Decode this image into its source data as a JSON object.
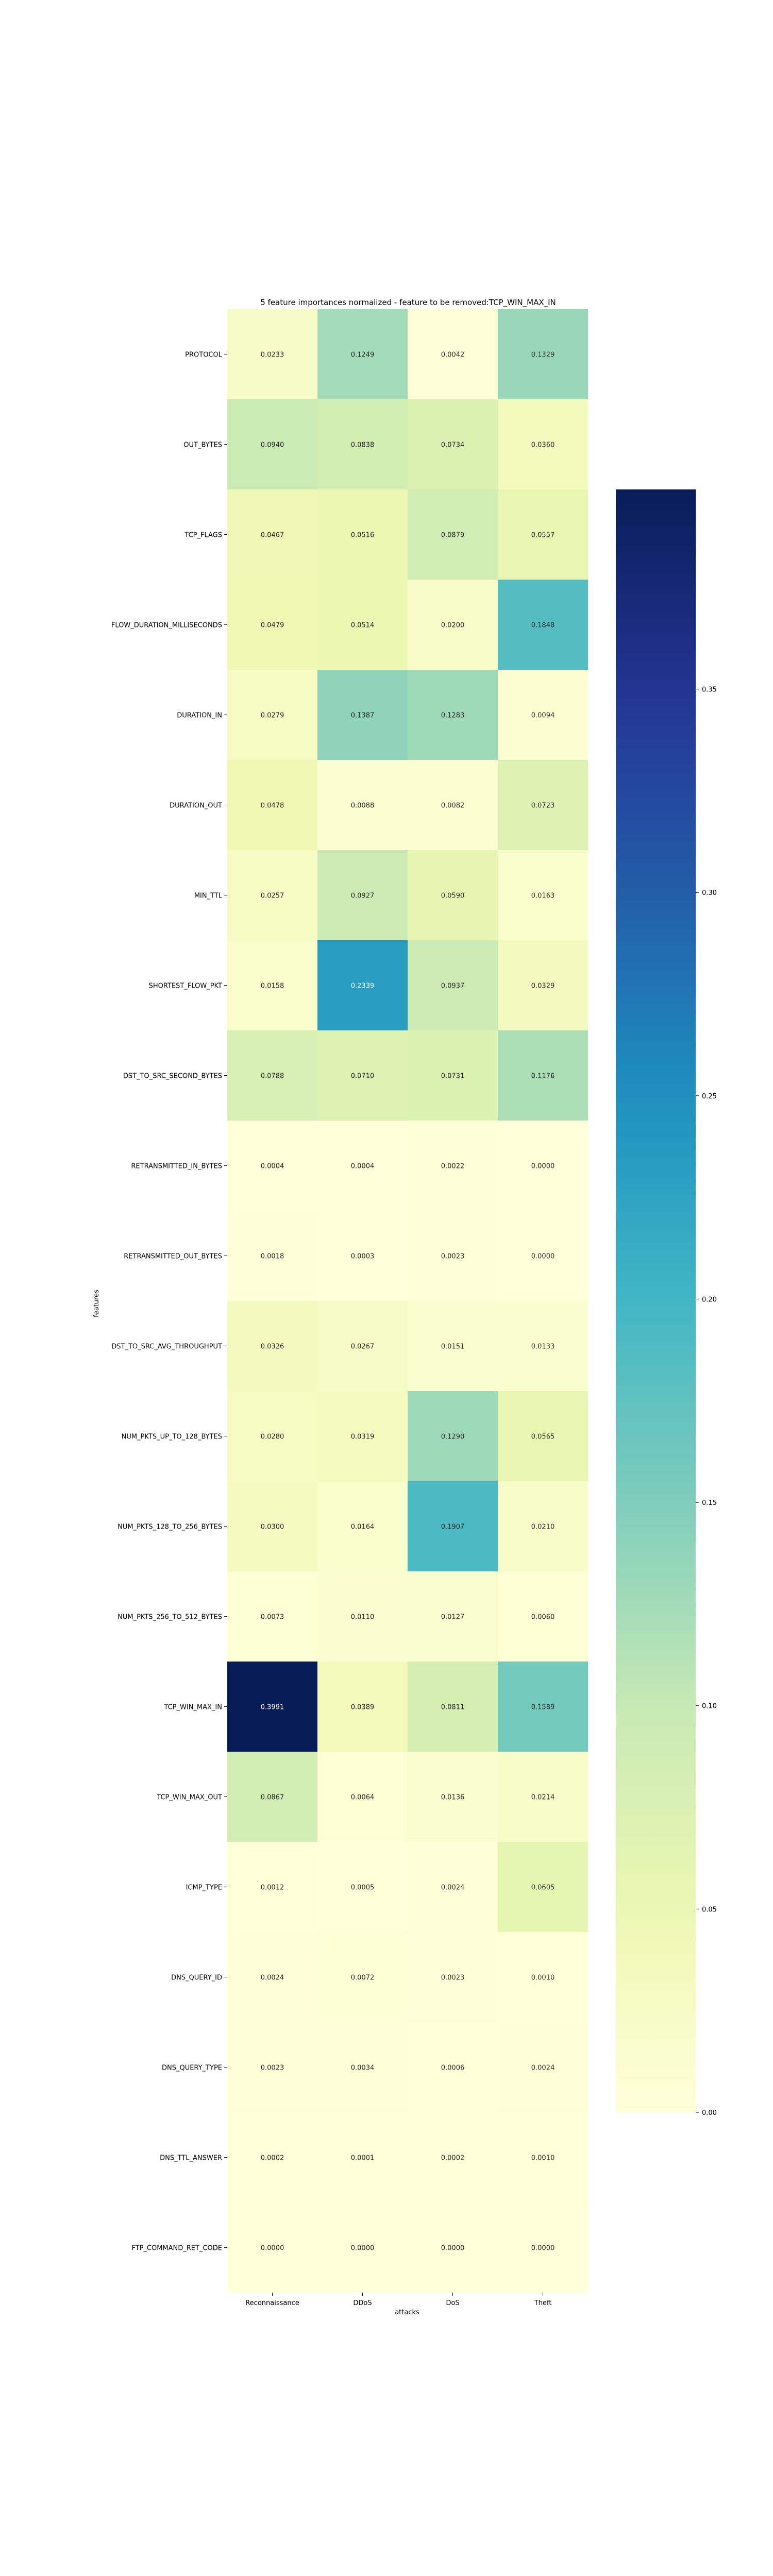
{
  "chart_data": {
    "type": "heatmap",
    "title": "5 feature importances normalized - feature to be removed:TCP_WIN_MAX_IN",
    "xlabel": "attacks",
    "ylabel": "features",
    "columns": [
      "Reconnaissance",
      "DDoS",
      "DoS",
      "Theft"
    ],
    "rows": [
      "PROTOCOL",
      "OUT_BYTES",
      "TCP_FLAGS",
      "FLOW_DURATION_MILLISECONDS",
      "DURATION_IN",
      "DURATION_OUT",
      "MIN_TTL",
      "SHORTEST_FLOW_PKT",
      "DST_TO_SRC_SECOND_BYTES",
      "RETRANSMITTED_IN_BYTES",
      "RETRANSMITTED_OUT_BYTES",
      "DST_TO_SRC_AVG_THROUGHPUT",
      "NUM_PKTS_UP_TO_128_BYTES",
      "NUM_PKTS_128_TO_256_BYTES",
      "NUM_PKTS_256_TO_512_BYTES",
      "TCP_WIN_MAX_IN",
      "TCP_WIN_MAX_OUT",
      "ICMP_TYPE",
      "DNS_QUERY_ID",
      "DNS_QUERY_TYPE",
      "DNS_TTL_ANSWER",
      "FTP_COMMAND_RET_CODE"
    ],
    "values": [
      [
        0.0233,
        0.1249,
        0.0042,
        0.1329
      ],
      [
        0.094,
        0.0838,
        0.0734,
        0.036
      ],
      [
        0.0467,
        0.0516,
        0.0879,
        0.0557
      ],
      [
        0.0479,
        0.0514,
        0.02,
        0.1848
      ],
      [
        0.0279,
        0.1387,
        0.1283,
        0.0094
      ],
      [
        0.0478,
        0.0088,
        0.0082,
        0.0723
      ],
      [
        0.0257,
        0.0927,
        0.059,
        0.0163
      ],
      [
        0.0158,
        0.2339,
        0.0937,
        0.0329
      ],
      [
        0.0788,
        0.071,
        0.0731,
        0.1176
      ],
      [
        0.0004,
        0.0004,
        0.0022,
        0.0
      ],
      [
        0.0018,
        0.0003,
        0.0023,
        0.0
      ],
      [
        0.0326,
        0.0267,
        0.0151,
        0.0133
      ],
      [
        0.028,
        0.0319,
        0.129,
        0.0565
      ],
      [
        0.03,
        0.0164,
        0.1907,
        0.021
      ],
      [
        0.0073,
        0.011,
        0.0127,
        0.006
      ],
      [
        0.3991,
        0.0389,
        0.0811,
        0.1589
      ],
      [
        0.0867,
        0.0064,
        0.0136,
        0.0214
      ],
      [
        0.0012,
        0.0005,
        0.0024,
        0.0605
      ],
      [
        0.0024,
        0.0072,
        0.0023,
        0.001
      ],
      [
        0.0023,
        0.0034,
        0.0006,
        0.0024
      ],
      [
        0.0002,
        0.0001,
        0.0002,
        0.001
      ],
      [
        0.0,
        0.0,
        0.0,
        0.0
      ]
    ],
    "value_format": "4 decimals",
    "colormap": "YlGnBu",
    "colorbar": {
      "range": [
        0,
        0.3991
      ],
      "ticks": [
        0.0,
        0.05,
        0.1,
        0.15,
        0.2,
        0.25,
        0.3,
        0.35
      ],
      "tick_labels": [
        "0.00",
        "0.05",
        "0.10",
        "0.15",
        "0.20",
        "0.25",
        "0.30",
        "0.35"
      ],
      "position": "right"
    },
    "grid": false
  }
}
